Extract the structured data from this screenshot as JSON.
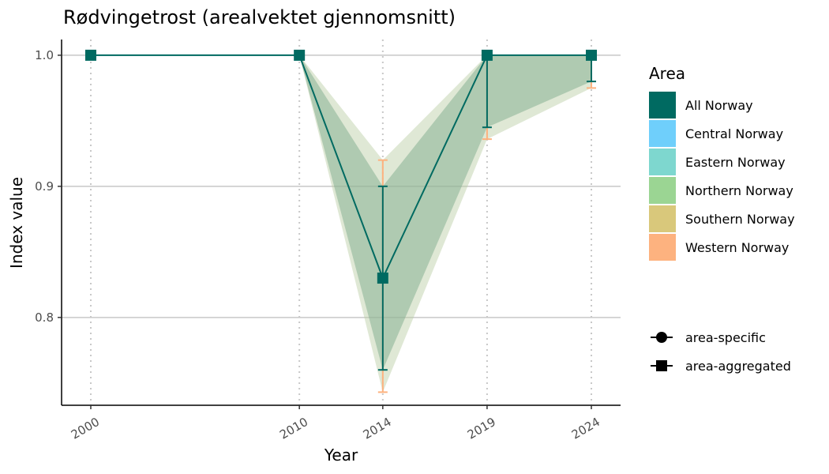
{
  "chart_data": {
    "type": "line",
    "title": "Rødvingetrost (arealvektet gjennomsnitt)",
    "xlabel": "Year",
    "ylabel": "Index value",
    "x": [
      2000,
      2010,
      2014,
      2019,
      2024
    ],
    "x_ticks": [
      "2000",
      "2010",
      "2014",
      "2019",
      "2024"
    ],
    "y_ticks": [
      0.8,
      0.9,
      1.0
    ],
    "y_tick_labels": [
      "0.8",
      "0.9",
      "1.0"
    ],
    "xlim": [
      1998.6,
      2025.4
    ],
    "ylim": [
      0.733,
      1.012
    ],
    "grid": {
      "horizontal_major": true,
      "vertical_dotted": true
    },
    "series": [
      {
        "name": "All Norway",
        "color": "#006A61",
        "marker": "square",
        "values": [
          1.0,
          1.0,
          0.83,
          1.0,
          1.0
        ],
        "lower": [
          1.0,
          1.0,
          0.76,
          0.945,
          0.98
        ],
        "upper": [
          1.0,
          1.0,
          0.9,
          1.0,
          1.0
        ],
        "band_color": "#7fab8e"
      },
      {
        "name": "Western Norway",
        "color": "#FDB27F",
        "marker": "none",
        "lower": [
          1.0,
          1.0,
          0.743,
          0.936,
          0.975
        ],
        "upper": [
          1.0,
          1.0,
          0.92,
          1.0,
          1.0
        ],
        "band_color": "#b7cca1"
      }
    ],
    "legend": {
      "title": "Area",
      "position": "right",
      "entries": [
        {
          "label": "All Norway",
          "color": "#006A61"
        },
        {
          "label": "Central Norway",
          "color": "#6FCFFB"
        },
        {
          "label": "Eastern Norway",
          "color": "#7ED7CF"
        },
        {
          "label": "Northern Norway",
          "color": "#9BD593"
        },
        {
          "label": "Southern Norway",
          "color": "#D9C87B"
        },
        {
          "label": "Western Norway",
          "color": "#FDB27F"
        }
      ],
      "shapes": [
        {
          "label": "area-specific",
          "shape": "circle"
        },
        {
          "label": "area-aggregated",
          "shape": "square"
        }
      ]
    }
  }
}
